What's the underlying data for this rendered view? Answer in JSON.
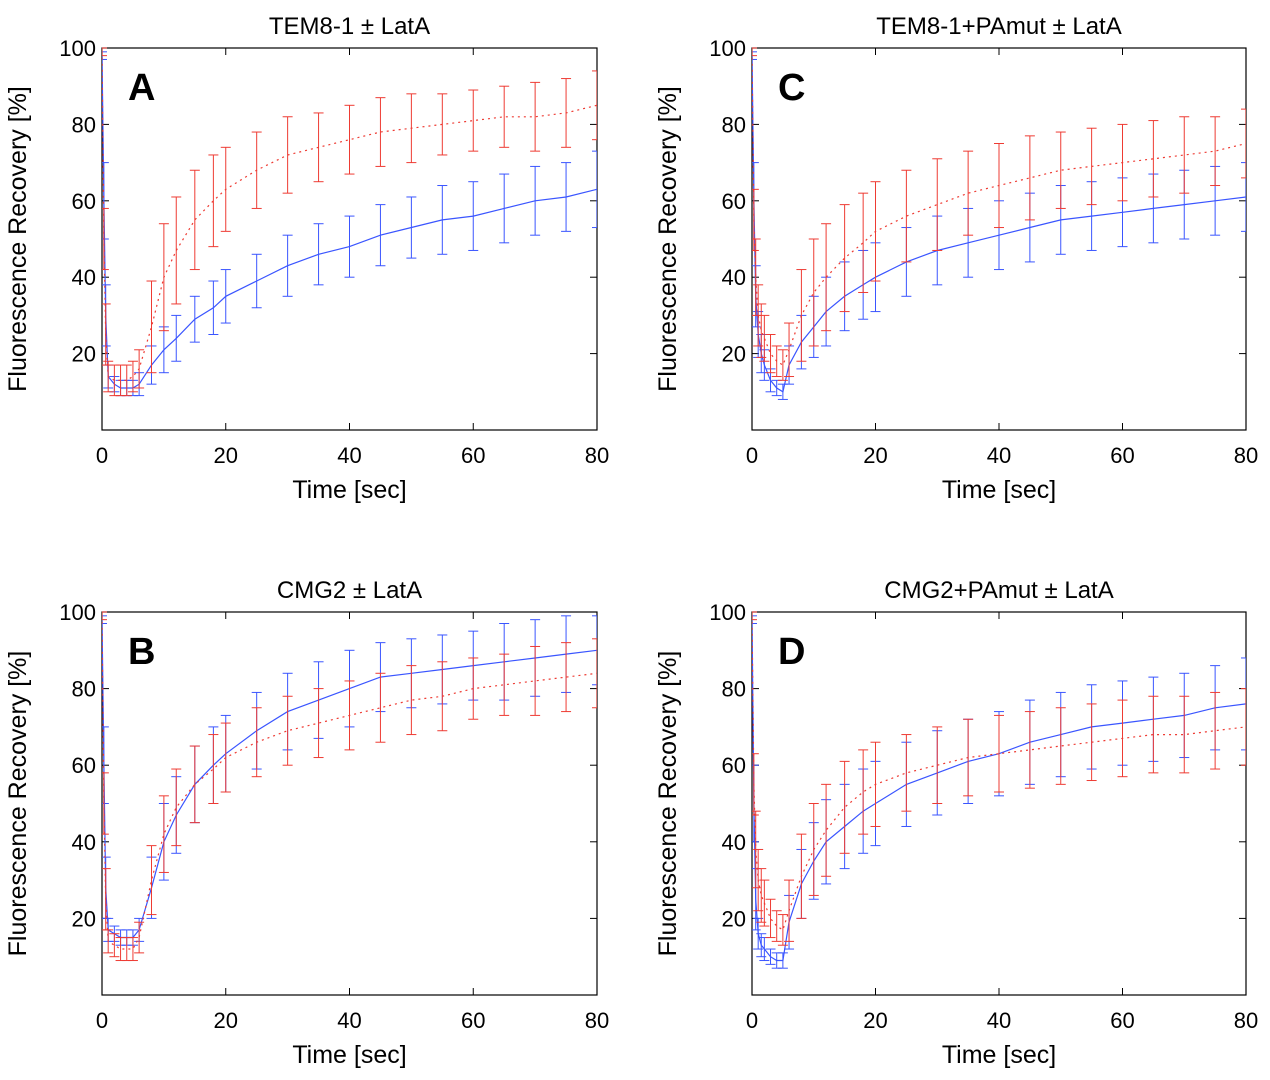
{
  "figure": {
    "colors": {
      "blue": "#3a55ff",
      "red": "#ee3b33"
    }
  },
  "chart_data": [
    {
      "type": "line",
      "panel": "A",
      "title": "TEM8-1 ± LatA",
      "xlabel": "Time [sec]",
      "ylabel": "Fluorescence Recovery [%]",
      "xlim": [
        0,
        80
      ],
      "ylim": [
        0,
        100
      ],
      "xticks": [
        0,
        20,
        40,
        60,
        80
      ],
      "yticks": [
        20,
        40,
        60,
        80,
        100
      ],
      "grid": false,
      "series": [
        {
          "color": "#3a55ff",
          "style": "solid",
          "x": [
            0,
            0.3,
            0.6,
            1,
            2,
            3,
            4,
            5,
            6,
            8,
            10,
            12,
            15,
            18,
            20,
            25,
            30,
            35,
            40,
            45,
            50,
            55,
            60,
            65,
            70,
            75,
            80
          ],
          "y": [
            98,
            60,
            30,
            14,
            12,
            11,
            11,
            11,
            12,
            17,
            21,
            24,
            29,
            32,
            35,
            39,
            43,
            46,
            48,
            51,
            53,
            55,
            56,
            58,
            60,
            61,
            63
          ],
          "err": [
            1,
            10,
            8,
            3,
            2,
            2,
            2,
            2,
            3,
            5,
            6,
            6,
            6,
            7,
            7,
            7,
            8,
            8,
            8,
            8,
            8,
            9,
            9,
            9,
            9,
            9,
            10
          ]
        },
        {
          "color": "#ee3b33",
          "style": "dotted",
          "x": [
            0,
            0.3,
            0.6,
            1,
            2,
            3,
            4,
            5,
            6,
            8,
            10,
            12,
            15,
            18,
            20,
            25,
            30,
            35,
            40,
            45,
            50,
            55,
            60,
            65,
            70,
            75,
            80
          ],
          "y": [
            99,
            50,
            25,
            14,
            13,
            13,
            13,
            14,
            16,
            27,
            40,
            47,
            55,
            60,
            63,
            68,
            72,
            74,
            76,
            78,
            79,
            80,
            81,
            82,
            82,
            83,
            85
          ],
          "err": [
            1,
            8,
            8,
            4,
            4,
            4,
            4,
            4,
            5,
            12,
            14,
            14,
            13,
            12,
            11,
            10,
            10,
            9,
            9,
            9,
            9,
            8,
            8,
            8,
            9,
            9,
            9
          ]
        }
      ]
    },
    {
      "type": "line",
      "panel": "B",
      "title": "CMG2 ± LatA",
      "xlabel": "Time [sec]",
      "ylabel": "Fluorescence Recovery [%]",
      "xlim": [
        0,
        80
      ],
      "ylim": [
        0,
        100
      ],
      "xticks": [
        0,
        20,
        40,
        60,
        80
      ],
      "yticks": [
        20,
        40,
        60,
        80,
        100
      ],
      "grid": false,
      "series": [
        {
          "color": "#3a55ff",
          "style": "solid",
          "x": [
            0,
            0.3,
            0.6,
            1,
            2,
            3,
            4,
            5,
            6,
            8,
            10,
            12,
            15,
            18,
            20,
            25,
            30,
            35,
            40,
            45,
            50,
            55,
            60,
            65,
            70,
            75,
            80
          ],
          "y": [
            98,
            60,
            28,
            17,
            16,
            15,
            15,
            15,
            17,
            28,
            40,
            47,
            55,
            60,
            63,
            69,
            74,
            77,
            80,
            83,
            84,
            85,
            86,
            87,
            88,
            89,
            90
          ],
          "err": [
            1,
            10,
            8,
            3,
            2,
            2,
            2,
            2,
            3,
            8,
            10,
            10,
            10,
            10,
            10,
            10,
            10,
            10,
            10,
            9,
            9,
            9,
            9,
            10,
            10,
            10,
            9
          ]
        },
        {
          "color": "#ee3b33",
          "style": "dotted",
          "x": [
            0,
            0.3,
            0.6,
            1,
            2,
            3,
            4,
            5,
            6,
            8,
            10,
            12,
            15,
            18,
            20,
            25,
            30,
            35,
            40,
            45,
            50,
            55,
            60,
            65,
            70,
            75,
            80
          ],
          "y": [
            99,
            50,
            25,
            14,
            13,
            12,
            12,
            12,
            15,
            30,
            42,
            49,
            55,
            59,
            62,
            66,
            69,
            71,
            73,
            75,
            77,
            78,
            80,
            81,
            82,
            83,
            84
          ],
          "err": [
            1,
            8,
            8,
            3,
            3,
            3,
            3,
            3,
            4,
            9,
            10,
            10,
            10,
            9,
            9,
            9,
            9,
            9,
            9,
            9,
            9,
            9,
            8,
            8,
            9,
            9,
            9
          ]
        }
      ]
    },
    {
      "type": "line",
      "panel": "C",
      "title": "TEM8-1+PAmut ± LatA",
      "xlabel": "Time [sec]",
      "ylabel": "Fluorescence Recovery [%]",
      "xlim": [
        0,
        80
      ],
      "ylim": [
        0,
        100
      ],
      "xticks": [
        0,
        20,
        40,
        60,
        80
      ],
      "yticks": [
        20,
        40,
        60,
        80,
        100
      ],
      "grid": false,
      "series": [
        {
          "color": "#3a55ff",
          "style": "solid",
          "x": [
            0,
            0.3,
            0.6,
            1,
            1.5,
            2,
            3,
            4,
            5,
            6,
            8,
            10,
            12,
            15,
            18,
            20,
            25,
            30,
            35,
            40,
            45,
            50,
            55,
            60,
            65,
            70,
            75,
            80
          ],
          "y": [
            98,
            60,
            35,
            25,
            20,
            17,
            13,
            11,
            10,
            17,
            23,
            27,
            31,
            35,
            38,
            40,
            44,
            47,
            49,
            51,
            53,
            55,
            56,
            57,
            58,
            59,
            60,
            61
          ],
          "err": [
            1,
            10,
            8,
            6,
            5,
            4,
            3,
            2,
            2,
            5,
            7,
            8,
            9,
            9,
            9,
            9,
            9,
            9,
            9,
            9,
            9,
            9,
            9,
            9,
            9,
            9,
            9,
            9
          ]
        },
        {
          "color": "#ee3b33",
          "style": "dotted",
          "x": [
            0,
            0.3,
            0.6,
            1,
            1.5,
            2,
            3,
            4,
            5,
            6,
            8,
            10,
            12,
            15,
            18,
            20,
            25,
            30,
            35,
            40,
            45,
            50,
            55,
            60,
            65,
            70,
            75,
            80
          ],
          "y": [
            99,
            55,
            40,
            30,
            26,
            24,
            20,
            18,
            17,
            21,
            30,
            36,
            40,
            45,
            49,
            52,
            56,
            59,
            62,
            64,
            66,
            68,
            69,
            70,
            71,
            72,
            73,
            75
          ],
          "err": [
            1,
            8,
            10,
            8,
            7,
            6,
            5,
            4,
            4,
            7,
            12,
            14,
            14,
            14,
            13,
            13,
            12,
            12,
            11,
            11,
            11,
            10,
            10,
            10,
            10,
            10,
            9,
            9
          ]
        }
      ]
    },
    {
      "type": "line",
      "panel": "D",
      "title": "CMG2+PAmut ± LatA",
      "xlabel": "Time [sec]",
      "ylabel": "Fluorescence Recovery [%]",
      "xlim": [
        0,
        80
      ],
      "ylim": [
        0,
        100
      ],
      "xticks": [
        0,
        20,
        40,
        60,
        80
      ],
      "yticks": [
        20,
        40,
        60,
        80,
        100
      ],
      "grid": false,
      "series": [
        {
          "color": "#3a55ff",
          "style": "solid",
          "x": [
            0,
            0.3,
            0.6,
            1,
            1.5,
            2,
            3,
            4,
            5,
            6,
            8,
            10,
            12,
            15,
            18,
            20,
            25,
            30,
            35,
            40,
            45,
            50,
            55,
            60,
            65,
            70,
            75,
            80
          ],
          "y": [
            98,
            50,
            25,
            16,
            13,
            12,
            10,
            9,
            9,
            19,
            29,
            35,
            40,
            44,
            48,
            50,
            55,
            58,
            61,
            63,
            66,
            68,
            70,
            71,
            72,
            73,
            75,
            76
          ],
          "err": [
            1,
            10,
            8,
            4,
            3,
            3,
            2,
            2,
            2,
            7,
            9,
            10,
            11,
            11,
            11,
            11,
            11,
            11,
            11,
            11,
            11,
            11,
            11,
            11,
            11,
            11,
            11,
            12
          ]
        },
        {
          "color": "#ee3b33",
          "style": "dotted",
          "x": [
            0,
            0.3,
            0.6,
            1,
            1.5,
            2,
            3,
            4,
            5,
            6,
            8,
            10,
            12,
            15,
            18,
            20,
            25,
            30,
            35,
            40,
            45,
            50,
            55,
            60,
            65,
            70,
            75,
            80
          ],
          "y": [
            99,
            55,
            38,
            30,
            26,
            24,
            20,
            18,
            17,
            22,
            31,
            38,
            43,
            49,
            53,
            55,
            58,
            60,
            62,
            63,
            64,
            65,
            66,
            67,
            68,
            68,
            69,
            70
          ],
          "err": [
            1,
            8,
            10,
            8,
            7,
            6,
            5,
            4,
            4,
            8,
            11,
            12,
            12,
            12,
            11,
            11,
            10,
            10,
            10,
            10,
            10,
            10,
            10,
            10,
            10,
            10,
            10,
            10
          ]
        }
      ]
    }
  ]
}
